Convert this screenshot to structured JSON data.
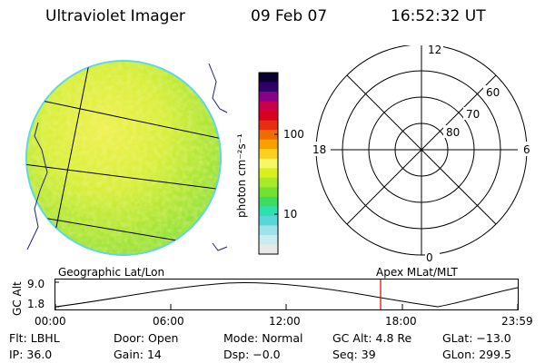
{
  "header": {
    "title": "Ultraviolet Imager",
    "date": "09 Feb 07",
    "time": "16:52:32 UT"
  },
  "colorbar": {
    "unit_label": "photon cm⁻²s⁻¹",
    "ticks": [
      "100",
      "10"
    ],
    "colors": [
      "#e8e8e8",
      "#c8ecf0",
      "#9ee2ea",
      "#58d6d8",
      "#2ee0b0",
      "#3cdc64",
      "#74e030",
      "#a8ea28",
      "#d8f020",
      "#f4f868",
      "#fbd020",
      "#f8a000",
      "#f06c00",
      "#e82e10",
      "#d80020",
      "#c8004a",
      "#880088",
      "#30006a",
      "#0a0030"
    ]
  },
  "polar_plot": {
    "mlt_labels": [
      "12",
      "18",
      "6",
      "0"
    ],
    "lat_labels": [
      "60",
      "70",
      "80"
    ]
  },
  "altitude_strip": {
    "left_title": "Geographic Lat/Lon",
    "right_title": "Apex MLat/MLT",
    "y_axis_title": "GC Alt",
    "y_ticks": [
      "9.0",
      "1.8"
    ],
    "x_ticks": [
      "00:00",
      "06:00",
      "12:00",
      "18:00",
      "23:59"
    ],
    "current_time_hours": 16.87
  },
  "info": {
    "row1": [
      {
        "label": "Flt:",
        "value": "LBHL"
      },
      {
        "label": "Door:",
        "value": "Open"
      },
      {
        "label": "Mode:",
        "value": "Normal"
      },
      {
        "label": "GC Alt:",
        "value": "4.8 Re"
      },
      {
        "label": "GLat:",
        "value": "−13.0"
      }
    ],
    "row2": [
      {
        "label": "IP:",
        "value": "36.0"
      },
      {
        "label": "Gain:",
        "value": "14"
      },
      {
        "label": "Dsp:",
        "value": "−0.0"
      },
      {
        "label": "Seq:",
        "value": "39"
      },
      {
        "label": "GLon:",
        "value": "299.5"
      }
    ]
  }
}
